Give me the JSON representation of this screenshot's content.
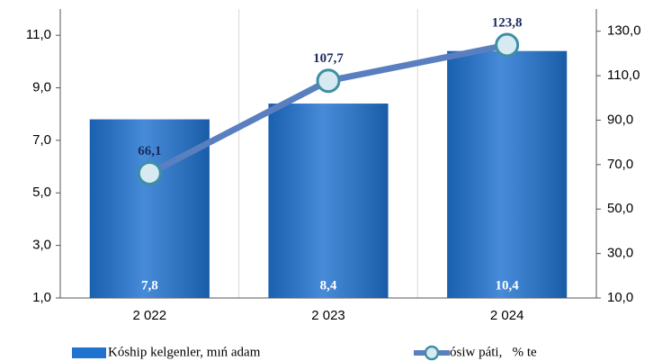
{
  "chart_data": {
    "type": "bar",
    "categories": [
      "2 022",
      "2 023",
      "2 024"
    ],
    "series": [
      {
        "name": "Kóship kelgenler, mıń adam",
        "type": "bar",
        "color": "#1f72d0",
        "values": [
          7.8,
          8.4,
          10.4
        ],
        "value_labels": [
          "7,8",
          "8,4",
          "10,4"
        ]
      },
      {
        "name": "ósiw páti,   % te",
        "type": "line",
        "axis": "y2",
        "color": "#5a7fc0",
        "values": [
          66.1,
          107.7,
          123.8
        ],
        "value_labels": [
          "66,1",
          "107,7",
          "123,8"
        ]
      }
    ],
    "ylim": [
      1,
      12
    ],
    "yticks": [
      {
        "value": 1,
        "label": "1,0"
      },
      {
        "value": 3,
        "label": "3,0"
      },
      {
        "value": 5,
        "label": "5,0"
      },
      {
        "value": 7,
        "label": "7,0"
      },
      {
        "value": 9,
        "label": "9,0"
      },
      {
        "value": 11,
        "label": "11,0"
      }
    ],
    "y2lim": [
      10,
      140
    ],
    "y2ticks": [
      {
        "value": 10,
        "label": "10,0"
      },
      {
        "value": 30,
        "label": "30,0"
      },
      {
        "value": 50,
        "label": "50,0"
      },
      {
        "value": 70,
        "label": "70,0"
      },
      {
        "value": 90,
        "label": "90,0"
      },
      {
        "value": 110,
        "label": "110,0"
      },
      {
        "value": 130,
        "label": "130,0"
      }
    ],
    "legend": "bottom"
  }
}
